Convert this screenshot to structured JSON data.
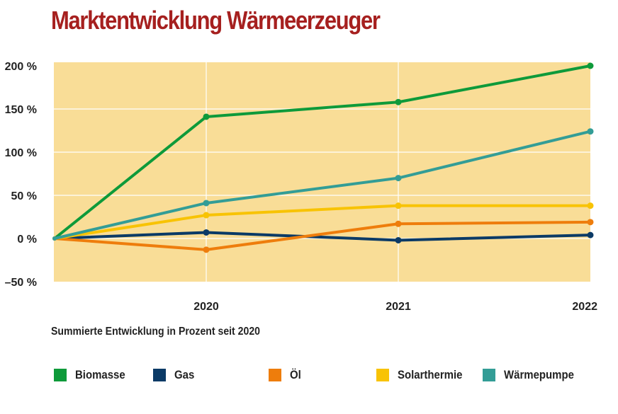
{
  "chart_data": {
    "type": "line",
    "title": "Marktentwicklung Wärmeerzeuger",
    "subtitle": "Summierte Entwicklung in Prozent seit 2020",
    "x": [
      "",
      "2020",
      "2021",
      "2022"
    ],
    "ylim": [
      -50,
      200
    ],
    "yticks": [
      -50,
      0,
      50,
      100,
      150,
      200
    ],
    "ytick_labels": [
      "–50 %",
      "0 %",
      "50 %",
      "100 %",
      "150 %",
      "200 %"
    ],
    "grid": true,
    "background": "#f9dd97",
    "legend_position": "bottom",
    "series": [
      {
        "name": "Biomasse",
        "color": "#0e9a3a",
        "values": [
          0,
          141,
          158,
          200
        ]
      },
      {
        "name": "Gas",
        "color": "#0b3a66",
        "values": [
          0,
          7,
          -2,
          4
        ]
      },
      {
        "name": "Öl",
        "color": "#ee7d0c",
        "values": [
          0,
          -13,
          17,
          19
        ]
      },
      {
        "name": "Solarthermie",
        "color": "#f8c304",
        "values": [
          0,
          27,
          38,
          38
        ]
      },
      {
        "name": "Wärmepumpe",
        "color": "#339d96",
        "values": [
          0,
          41,
          70,
          124
        ]
      }
    ]
  }
}
